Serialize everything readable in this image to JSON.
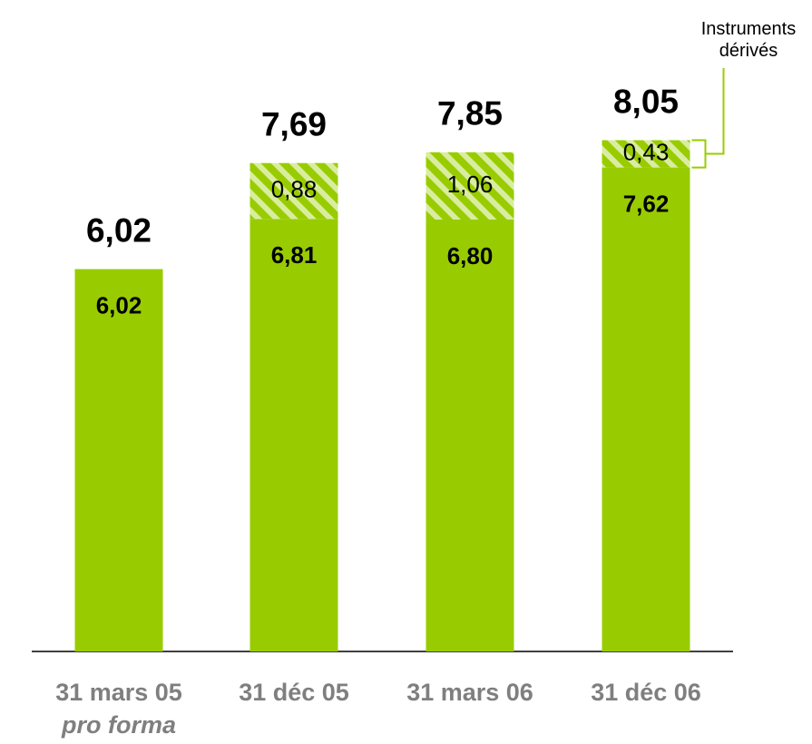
{
  "chart_data": {
    "type": "stacked_bar",
    "categories": [
      "31 mars 05",
      "31 déc 05",
      "31 mars 06",
      "31 déc 06"
    ],
    "category_notes": [
      "pro forma",
      null,
      null,
      null
    ],
    "series": [
      {
        "color": "#99cc00",
        "values": [
          6.02,
          6.81,
          6.8,
          7.62
        ],
        "value_labels": [
          "6,02",
          "6,81",
          "6,80",
          "7,62"
        ]
      },
      {
        "name": "Instruments dérivés",
        "color": "#99cc00",
        "hatch": true,
        "values": [
          null,
          0.88,
          1.06,
          0.43
        ],
        "value_labels": [
          null,
          "0,88",
          "1,06",
          "0,43"
        ]
      }
    ],
    "totals": [
      6.02,
      7.69,
      7.85,
      8.05
    ],
    "total_labels": [
      "6,02",
      "7,69",
      "7,85",
      "8,05"
    ],
    "ylim": [
      0,
      9.6
    ]
  }
}
